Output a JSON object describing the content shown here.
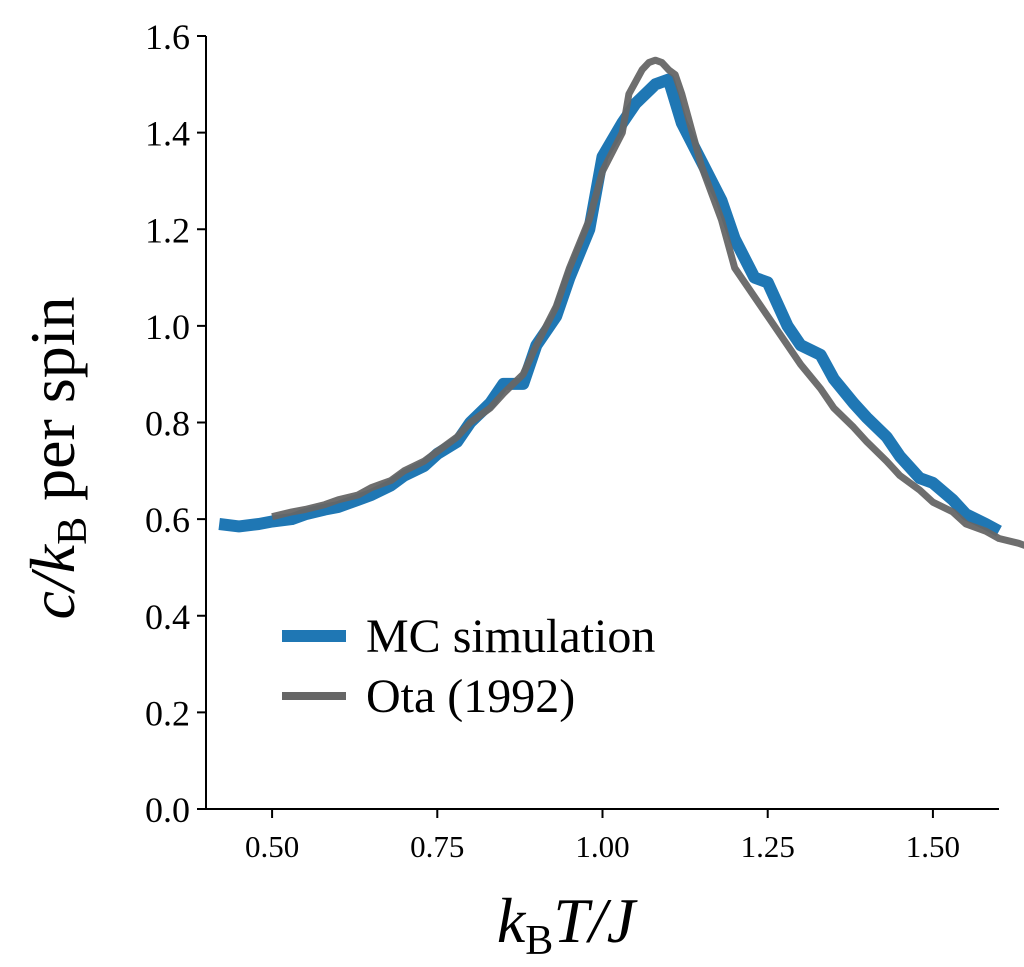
{
  "chart_data": {
    "type": "line",
    "xlabel": {
      "k": "k",
      "sub": "B",
      "rest": "T/J"
    },
    "ylabel": {
      "c": "c/k",
      "sub": "B",
      "rest": " per spin"
    },
    "xlim": [
      0.4,
      1.6
    ],
    "ylim": [
      0.0,
      1.6
    ],
    "x_ticks": [
      0.5,
      0.75,
      1.0,
      1.25,
      1.5
    ],
    "x_tick_labels": [
      "0.50",
      "0.75",
      "1.00",
      "1.25",
      "1.50"
    ],
    "y_ticks": [
      0.0,
      0.2,
      0.4,
      0.6,
      0.8,
      1.0,
      1.2,
      1.4,
      1.6
    ],
    "y_tick_labels": [
      "0.0",
      "0.2",
      "0.4",
      "0.6",
      "0.8",
      "1.0",
      "1.2",
      "1.4",
      "1.6"
    ],
    "grid": false,
    "legend_position": "lower-left",
    "series": [
      {
        "name": "MC simulation",
        "color": "#1f77b4",
        "x": [
          0.42,
          0.45,
          0.48,
          0.5,
          0.53,
          0.55,
          0.58,
          0.6,
          0.63,
          0.65,
          0.68,
          0.7,
          0.73,
          0.75,
          0.78,
          0.8,
          0.83,
          0.85,
          0.88,
          0.9,
          0.93,
          0.95,
          0.98,
          1.0,
          1.03,
          1.05,
          1.08,
          1.1,
          1.12,
          1.15,
          1.18,
          1.2,
          1.23,
          1.25,
          1.28,
          1.3,
          1.33,
          1.35,
          1.38,
          1.4,
          1.43,
          1.45,
          1.48,
          1.5,
          1.53,
          1.55,
          1.58,
          1.6
        ],
        "y": [
          0.59,
          0.585,
          0.59,
          0.595,
          0.6,
          0.61,
          0.62,
          0.625,
          0.64,
          0.65,
          0.67,
          0.69,
          0.71,
          0.735,
          0.76,
          0.8,
          0.84,
          0.88,
          0.88,
          0.96,
          1.02,
          1.1,
          1.2,
          1.35,
          1.42,
          1.46,
          1.5,
          1.51,
          1.42,
          1.34,
          1.26,
          1.18,
          1.1,
          1.09,
          1.0,
          0.96,
          0.94,
          0.89,
          0.84,
          0.81,
          0.77,
          0.73,
          0.685,
          0.675,
          0.64,
          0.61,
          0.59,
          0.575
        ]
      },
      {
        "name": "Ota (1992)",
        "color": "#666666",
        "x": [
          0.5,
          0.53,
          0.55,
          0.58,
          0.6,
          0.63,
          0.65,
          0.68,
          0.7,
          0.73,
          0.75,
          0.78,
          0.8,
          0.83,
          0.85,
          0.88,
          0.9,
          0.93,
          0.95,
          0.98,
          1.0,
          1.03,
          1.04,
          1.06,
          1.07,
          1.08,
          1.09,
          1.1,
          1.11,
          1.12,
          1.13,
          1.15,
          1.18,
          1.2,
          1.23,
          1.25,
          1.28,
          1.3,
          1.33,
          1.35,
          1.38,
          1.4,
          1.43,
          1.45,
          1.48,
          1.5,
          1.53,
          1.55,
          1.58,
          1.6,
          1.63,
          1.65
        ],
        "y": [
          0.605,
          0.615,
          0.62,
          0.63,
          0.64,
          0.65,
          0.665,
          0.68,
          0.7,
          0.72,
          0.74,
          0.77,
          0.8,
          0.83,
          0.86,
          0.9,
          0.96,
          1.04,
          1.12,
          1.22,
          1.32,
          1.4,
          1.48,
          1.53,
          1.545,
          1.55,
          1.545,
          1.53,
          1.52,
          1.48,
          1.43,
          1.33,
          1.22,
          1.12,
          1.06,
          1.02,
          0.96,
          0.92,
          0.87,
          0.83,
          0.79,
          0.76,
          0.72,
          0.69,
          0.66,
          0.635,
          0.615,
          0.59,
          0.575,
          0.56,
          0.55,
          0.54
        ]
      }
    ]
  }
}
